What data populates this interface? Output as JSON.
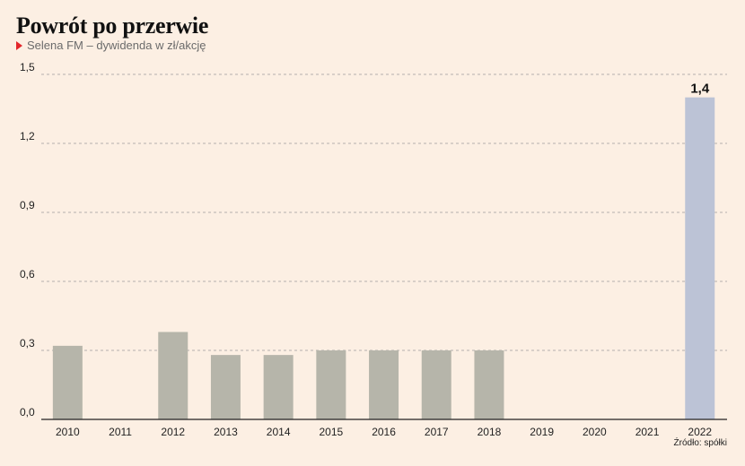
{
  "title": "Powrót po przerwie",
  "subtitle": "Selena FM – dywidenda w zł/akcję",
  "source": "Źródło: spółki",
  "colors": {
    "background": "#fcefe3",
    "bar": "#b6b5aa",
    "highlight": "#bcc3d6",
    "accent": "#e3262b"
  },
  "chart_data": {
    "type": "bar",
    "categories": [
      "2010",
      "2011",
      "2012",
      "2013",
      "2014",
      "2015",
      "2016",
      "2017",
      "2018",
      "2019",
      "2020",
      "2021",
      "2022"
    ],
    "values": [
      0.32,
      0,
      0.38,
      0.28,
      0.28,
      0.3,
      0.3,
      0.3,
      0.3,
      0,
      0,
      0,
      1.4
    ],
    "ylim": [
      0,
      1.5
    ],
    "yticks": [
      "0,0",
      "0,3",
      "0,6",
      "0,9",
      "1,2",
      "1,5"
    ],
    "highlight_index": 12,
    "highlight_label": "1,4",
    "grid": true
  }
}
